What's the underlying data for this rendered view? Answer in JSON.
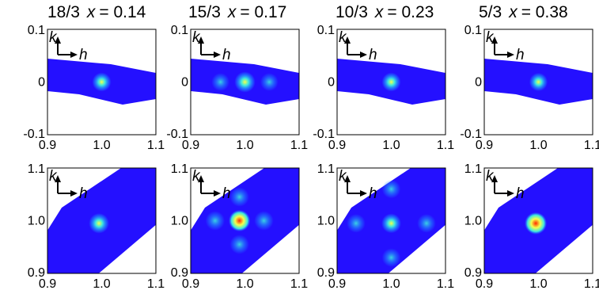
{
  "panel_titles": [
    {
      "doping": "18/3",
      "x_label": "x",
      "x_value": "= 0.14"
    },
    {
      "doping": "15/3",
      "x_label": "x",
      "x_value": "= 0.17"
    },
    {
      "doping": "10/3",
      "x_label": "x",
      "x_value": "= 0.23"
    },
    {
      "doping": "5/3",
      "x_label": "x",
      "x_value": "= 0.38"
    }
  ],
  "axis_glyphs": {
    "k": "k",
    "h": "h"
  },
  "colors": {
    "background": "#2410ff",
    "map_low": "#1e1af0",
    "map_mid": "#1f8dff",
    "spot_core": "#f5ff4a",
    "spot_center_hot": "#ff2a00",
    "spot_halo": "#3ce8e0",
    "frame": "#000000"
  },
  "chart_data": [
    {
      "type": "heatmap",
      "row": "top",
      "column": "18/3 x = 0.14",
      "xlim": [
        0.9,
        1.1
      ],
      "ylim": [
        -0.1,
        0.1
      ],
      "xticks": [
        "0.9",
        "1.0",
        "1.1"
      ],
      "yticks": [
        "0.1",
        "0",
        "-0.1"
      ],
      "xaxis": "h",
      "yaxis": "k",
      "peaks": [
        {
          "h": 1.0,
          "k": 0.0,
          "intensity": 0.75
        }
      ]
    },
    {
      "type": "heatmap",
      "row": "top",
      "column": "15/3 x = 0.17",
      "xlim": [
        0.9,
        1.1
      ],
      "ylim": [
        -0.1,
        0.1
      ],
      "xticks": [
        "0.9",
        "1.0",
        "1.1"
      ],
      "yticks": [
        "0.1",
        "0",
        "-0.1"
      ],
      "xaxis": "h",
      "yaxis": "k",
      "peaks": [
        {
          "h": 1.0,
          "k": 0.0,
          "intensity": 0.9
        },
        {
          "h": 0.955,
          "k": 0.0,
          "intensity": 0.3
        },
        {
          "h": 1.045,
          "k": 0.0,
          "intensity": 0.3
        }
      ]
    },
    {
      "type": "heatmap",
      "row": "top",
      "column": "10/3 x = 0.23",
      "xlim": [
        0.9,
        1.1
      ],
      "ylim": [
        -0.1,
        0.1
      ],
      "xticks": [
        "0.9",
        "1.0",
        "1.1"
      ],
      "yticks": [
        "0.1",
        "0",
        "-0.1"
      ],
      "xaxis": "h",
      "yaxis": "k",
      "peaks": [
        {
          "h": 1.0,
          "k": 0.0,
          "intensity": 0.75
        }
      ]
    },
    {
      "type": "heatmap",
      "row": "top",
      "column": "5/3 x = 0.38",
      "xlim": [
        0.9,
        1.1
      ],
      "ylim": [
        -0.1,
        0.1
      ],
      "xticks": [
        "0.9",
        "1.0",
        "1.1"
      ],
      "yticks": [
        "0.1",
        "0",
        "-0.1"
      ],
      "xaxis": "h",
      "yaxis": "k",
      "peaks": [
        {
          "h": 1.0,
          "k": 0.0,
          "intensity": 0.7
        }
      ]
    },
    {
      "type": "heatmap",
      "row": "bottom",
      "column": "18/3 x = 0.14",
      "xlim": [
        0.9,
        1.1
      ],
      "ylim": [
        0.9,
        1.1
      ],
      "xticks": [
        "0.9",
        "1.0",
        "1.1"
      ],
      "yticks": [
        "1.1",
        "1.0",
        "0.9"
      ],
      "xaxis": "h",
      "yaxis": "k",
      "peaks": [
        {
          "h": 0.995,
          "k": 0.995,
          "intensity": 0.85
        }
      ]
    },
    {
      "type": "heatmap",
      "row": "bottom",
      "column": "15/3 x = 0.17",
      "xlim": [
        0.9,
        1.1
      ],
      "ylim": [
        0.9,
        1.1
      ],
      "xticks": [
        "0.9",
        "1.0",
        "1.1"
      ],
      "yticks": [
        "1.1",
        "1.0",
        "0.9"
      ],
      "xaxis": "h",
      "yaxis": "k",
      "peaks": [
        {
          "h": 0.99,
          "k": 1.0,
          "intensity": 0.95
        },
        {
          "h": 0.945,
          "k": 1.0,
          "intensity": 0.4
        },
        {
          "h": 1.035,
          "k": 1.0,
          "intensity": 0.4
        },
        {
          "h": 0.99,
          "k": 1.045,
          "intensity": 0.4
        },
        {
          "h": 0.99,
          "k": 0.955,
          "intensity": 0.4
        }
      ]
    },
    {
      "type": "heatmap",
      "row": "bottom",
      "column": "10/3 x = 0.23",
      "xlim": [
        0.9,
        1.1
      ],
      "ylim": [
        0.9,
        1.1
      ],
      "xticks": [
        "0.9",
        "1.0",
        "1.1"
      ],
      "yticks": [
        "1.1",
        "1.0",
        "0.9"
      ],
      "xaxis": "h",
      "yaxis": "k",
      "peaks": [
        {
          "h": 1.0,
          "k": 0.995,
          "intensity": 0.8
        },
        {
          "h": 0.935,
          "k": 0.995,
          "intensity": 0.35
        },
        {
          "h": 1.065,
          "k": 0.995,
          "intensity": 0.35
        },
        {
          "h": 1.0,
          "k": 1.06,
          "intensity": 0.35
        },
        {
          "h": 1.0,
          "k": 0.93,
          "intensity": 0.35
        }
      ]
    },
    {
      "type": "heatmap",
      "row": "bottom",
      "column": "5/3 x = 0.38",
      "xlim": [
        0.9,
        1.1
      ],
      "ylim": [
        0.9,
        1.1
      ],
      "xticks": [
        "0.9",
        "1.0",
        "1.1"
      ],
      "yticks": [
        "1.1",
        "1.0",
        "0.9"
      ],
      "xaxis": "h",
      "yaxis": "k",
      "peaks": [
        {
          "h": 0.995,
          "k": 0.995,
          "intensity": 1.0
        }
      ]
    }
  ]
}
